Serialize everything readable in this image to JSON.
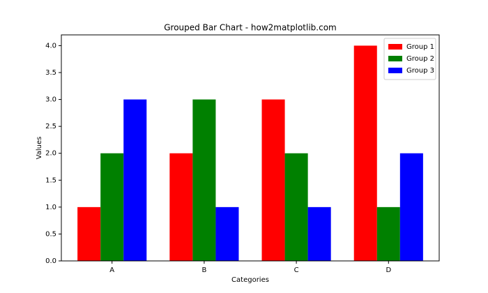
{
  "chart_data": {
    "type": "bar",
    "title": "Grouped Bar Chart - how2matplotlib.com",
    "x_label": "Categories",
    "y_label": "Values",
    "categories": [
      "A",
      "B",
      "C",
      "D"
    ],
    "series": [
      {
        "name": "Group 1",
        "color": "#ff0000",
        "values": [
          1,
          2,
          3,
          4
        ]
      },
      {
        "name": "Group 2",
        "color": "#008000",
        "values": [
          2,
          3,
          2,
          1
        ]
      },
      {
        "name": "Group 3",
        "color": "#0000ff",
        "values": [
          3,
          1,
          1,
          2
        ]
      }
    ],
    "ylim": [
      0,
      4.2
    ],
    "yticks": [
      {
        "value": 0,
        "label": "0.0"
      },
      {
        "value": 0.5,
        "label": "0.5"
      },
      {
        "value": 1,
        "label": "1.0"
      },
      {
        "value": 1.5,
        "label": "1.5"
      },
      {
        "value": 2,
        "label": "2.0"
      },
      {
        "value": 2.5,
        "label": "2.5"
      },
      {
        "value": 3,
        "label": "3.0"
      },
      {
        "value": 3.5,
        "label": "3.5"
      },
      {
        "value": 4,
        "label": "4.0"
      }
    ],
    "legend": "upper right"
  }
}
